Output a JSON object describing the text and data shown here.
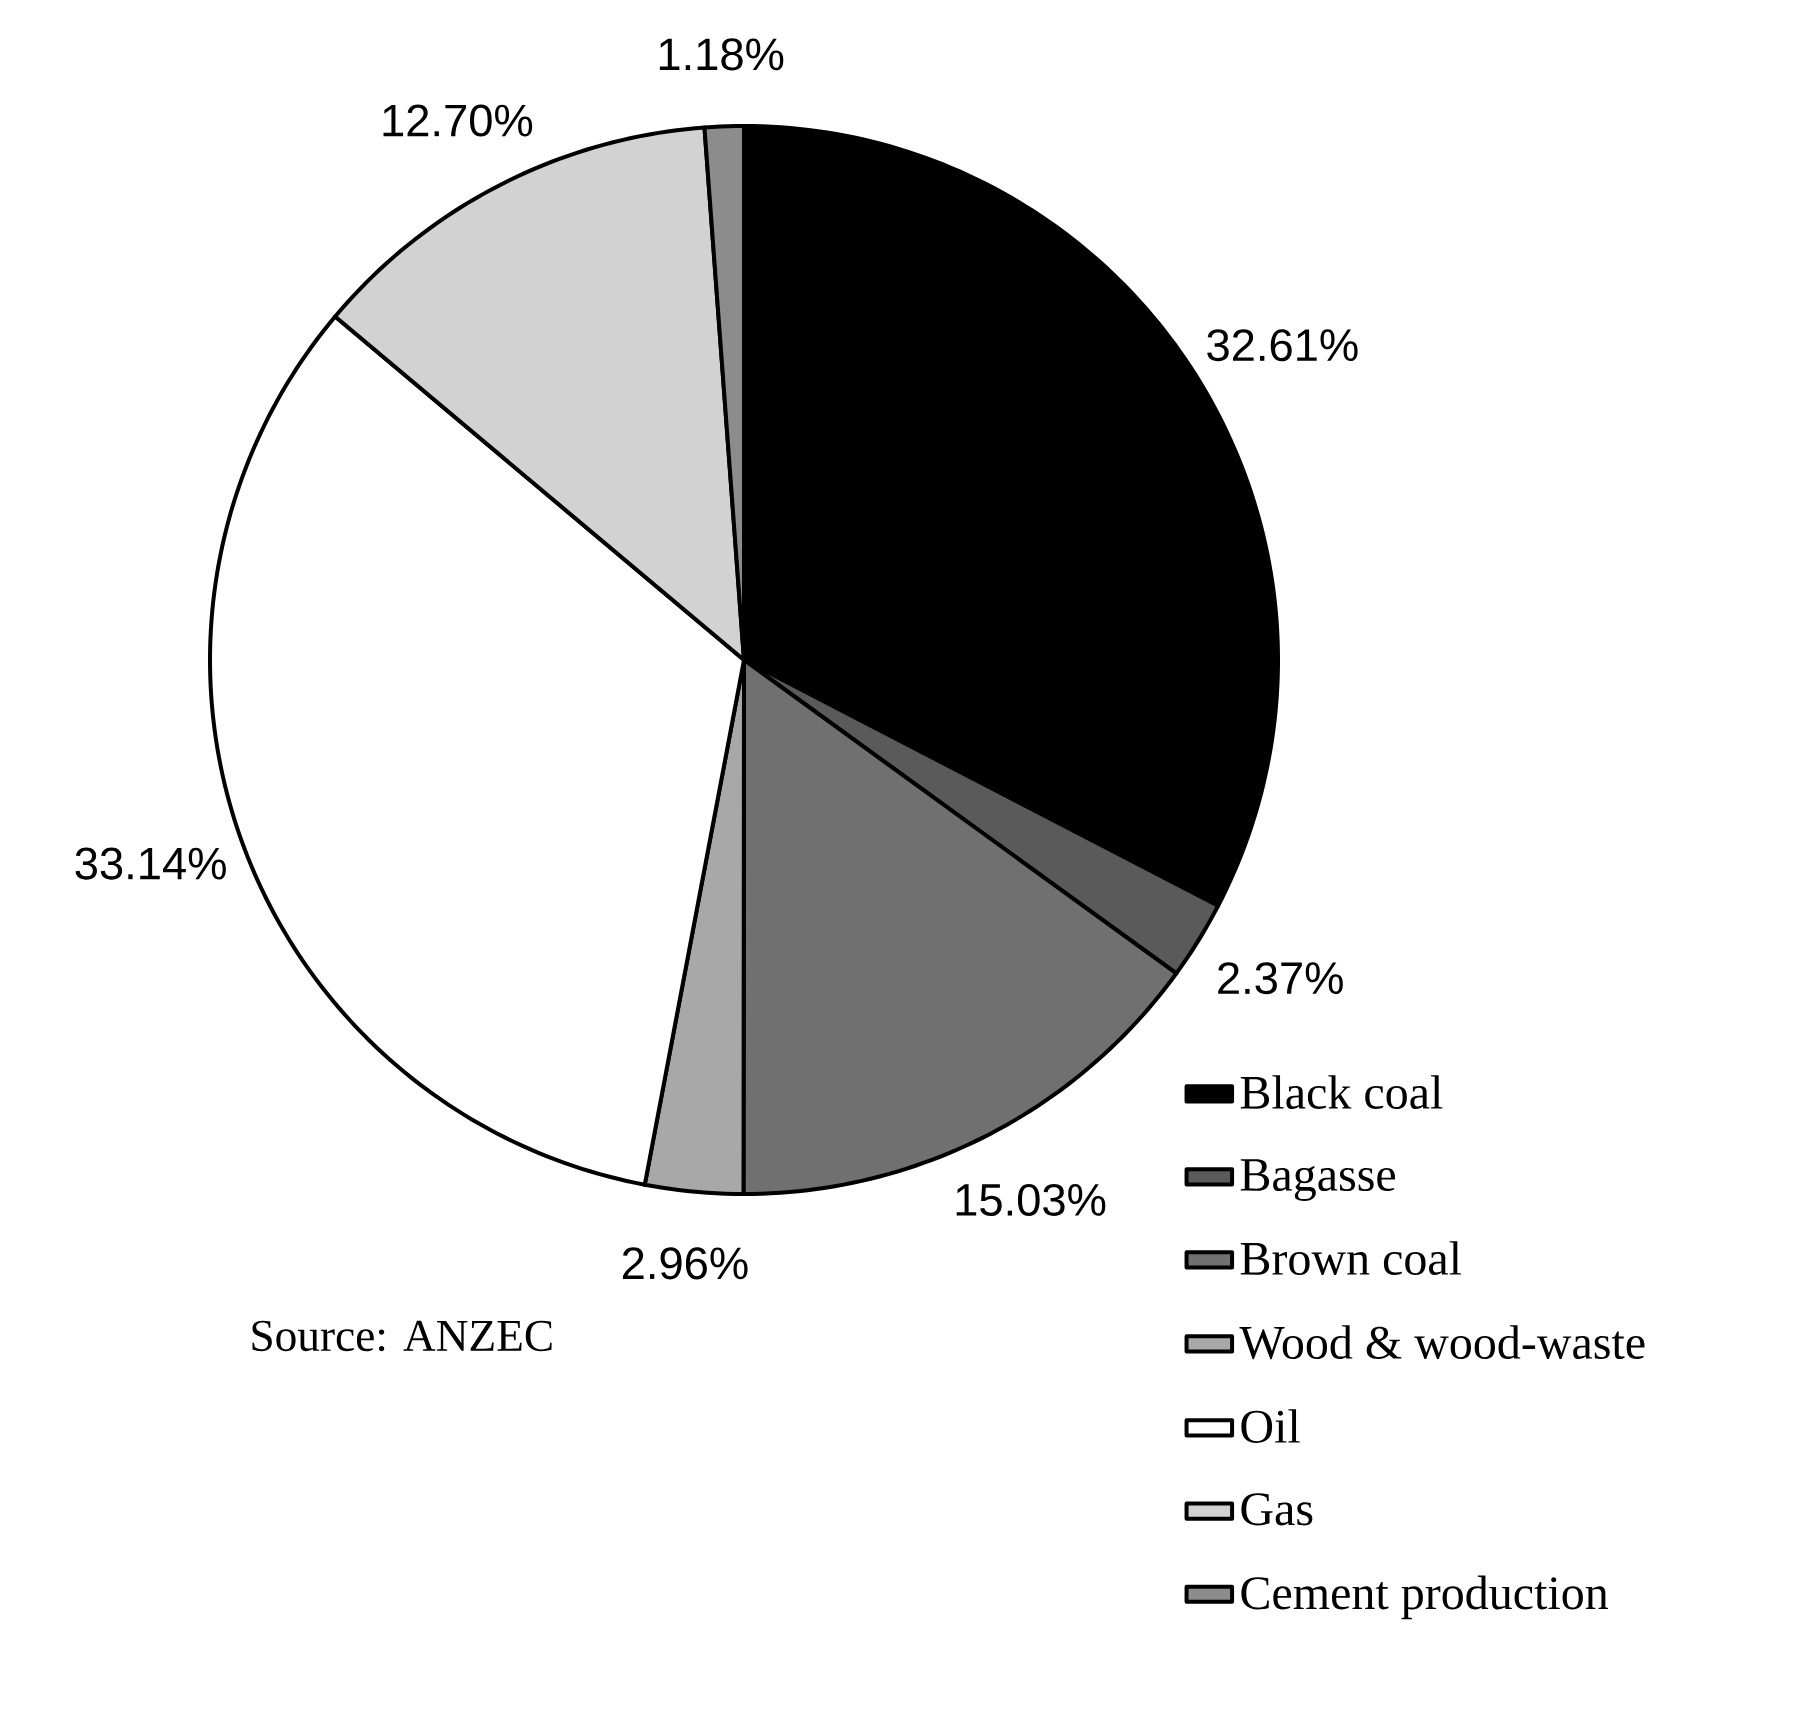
{
  "chart_data": {
    "type": "pie",
    "categories": [
      "Black coal",
      "Bagasse",
      "Brown coal",
      "Wood & wood-waste",
      "Oil",
      "Gas",
      "Cement production"
    ],
    "values": [
      32.61,
      2.37,
      15.03,
      2.96,
      33.14,
      12.7,
      1.18
    ],
    "value_labels": [
      "32.61%",
      "2.37%",
      "15.03%",
      "2.96%",
      "33.14%",
      "12.70%",
      "1.18%"
    ],
    "colors": [
      "#000000",
      "#5a5a5a",
      "#707070",
      "#a8a8a8",
      "#ffffff",
      "#d2d2d2",
      "#8c8c8c"
    ],
    "legend": "bottom right",
    "annotations": [
      "Source: ANZEC"
    ]
  }
}
